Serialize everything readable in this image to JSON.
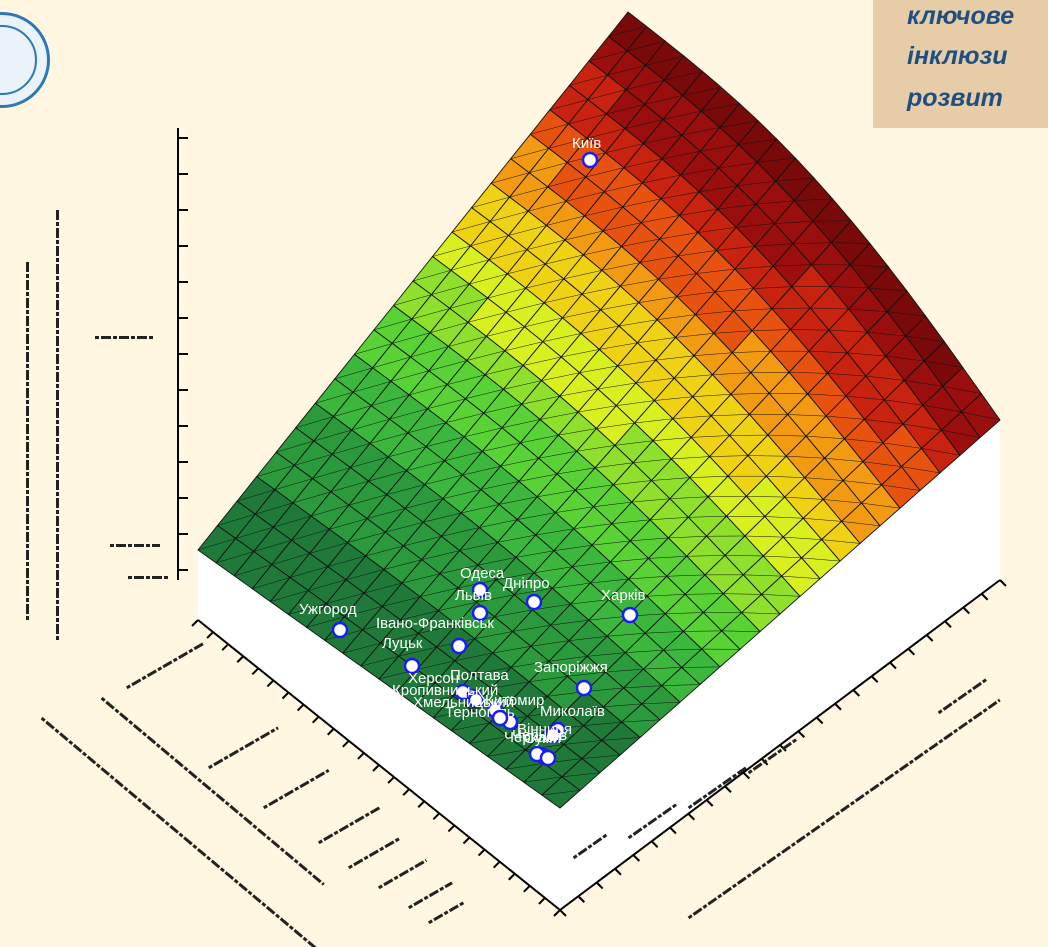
{
  "title_lines": [
    "ключове",
    "інклюзи",
    "розвит"
  ],
  "colors": {
    "background": "#fff7e1",
    "title_box": "#e6cda8",
    "title_text": "#1f4f82",
    "surface_low": "#1f7a3a",
    "surface_high": "#7a0a0a"
  },
  "chart_data": {
    "type": "scatter",
    "subtype": "3d-surface",
    "grid": true,
    "points": [
      {
        "label": "Київ"
      },
      {
        "label": "Одеса"
      },
      {
        "label": "Дніпро"
      },
      {
        "label": "Харків"
      },
      {
        "label": "Львів"
      },
      {
        "label": "Ужгород"
      },
      {
        "label": "Івано-Франківськ"
      },
      {
        "label": "Луцьк"
      },
      {
        "label": "Запоріжжя"
      },
      {
        "label": "Херсон"
      },
      {
        "label": "Полтава"
      },
      {
        "label": "Кропивницький"
      },
      {
        "label": "Хмельницький"
      },
      {
        "label": "Тернопіль"
      },
      {
        "label": "Житомир"
      },
      {
        "label": "Миколаїв"
      },
      {
        "label": "Вінниця"
      },
      {
        "label": "Черкаси"
      },
      {
        "label": "Чернігів"
      },
      {
        "label": "Суми"
      }
    ]
  }
}
